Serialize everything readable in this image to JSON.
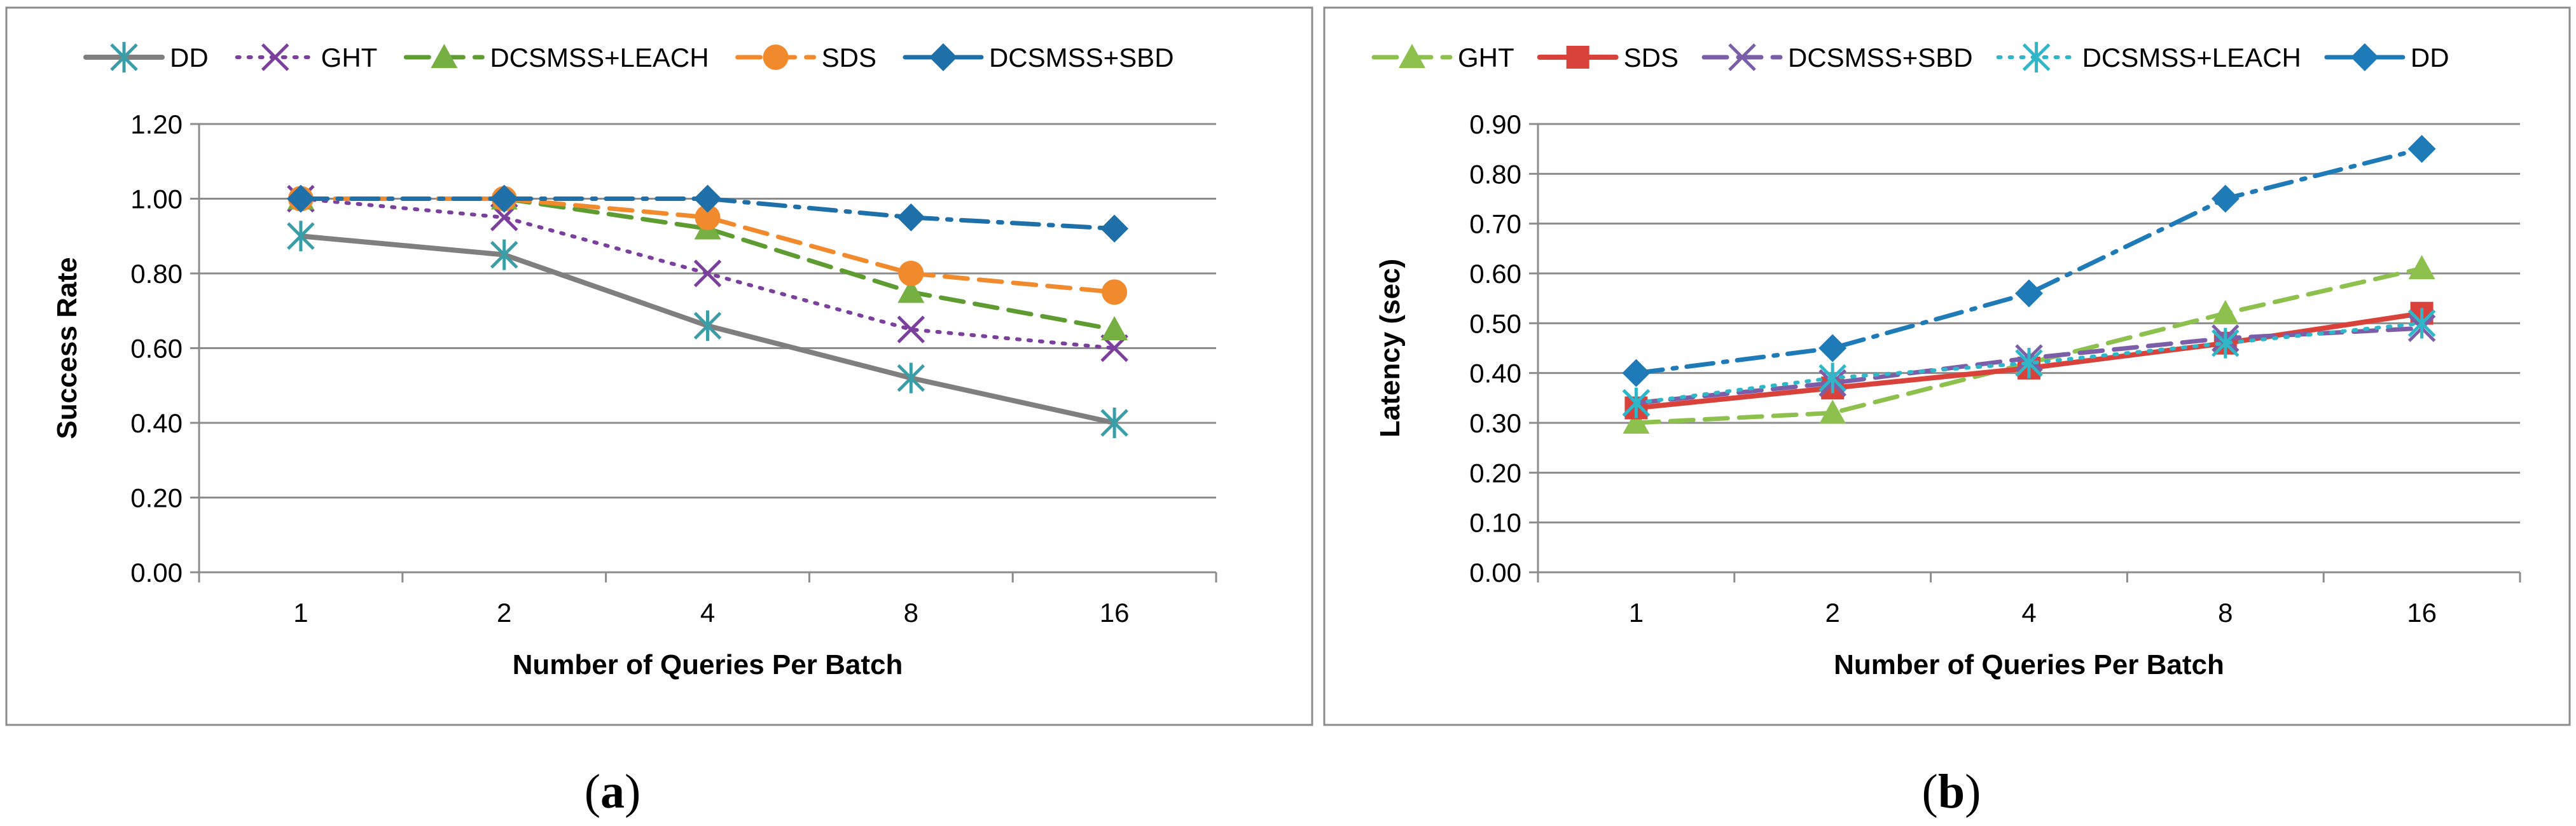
{
  "panel_a_caption": {
    "open": "(",
    "letter": "a",
    "close": ")"
  },
  "panel_b_caption": {
    "open": "(",
    "letter": "b",
    "close": ")"
  },
  "chart_data": [
    {
      "type": "line",
      "categories": [
        "1",
        "2",
        "4",
        "8",
        "16"
      ],
      "xlabel": "Number of Queries Per Batch",
      "ylabel": "Success Rate",
      "ylim": [
        0,
        1.2
      ],
      "ytick_labels": [
        "0.00",
        "0.20",
        "0.40",
        "0.60",
        "0.80",
        "1.00",
        "1.20"
      ],
      "grid": true,
      "legend_position": "top",
      "series": [
        {
          "name": "DD",
          "values": [
            0.9,
            0.85,
            0.66,
            0.52,
            0.4
          ],
          "color": "#7f7f7f",
          "dash": "solid",
          "marker": "star",
          "marker_color": "#3a9ea8",
          "width": 8
        },
        {
          "name": "GHT",
          "values": [
            1.0,
            0.95,
            0.8,
            0.65,
            0.6
          ],
          "color": "#7b3f9e",
          "dash": "dot",
          "marker": "x",
          "marker_color": "#7b3f9e",
          "width": 6
        },
        {
          "name": "DCSMSS+LEACH",
          "values": [
            1.0,
            1.0,
            0.92,
            0.75,
            0.65
          ],
          "color": "#5e9c32",
          "dash": "dash",
          "marker": "triangle",
          "marker_color": "#76b043",
          "width": 7
        },
        {
          "name": "SDS",
          "values": [
            1.0,
            1.0,
            0.95,
            0.8,
            0.75
          ],
          "color": "#f08a2c",
          "dash": "dash",
          "marker": "circle",
          "marker_color": "#f08a2c",
          "width": 7
        },
        {
          "name": "DCSMSS+SBD",
          "values": [
            1.0,
            1.0,
            1.0,
            0.95,
            0.92
          ],
          "color": "#1f6fa8",
          "dash": "dashdot",
          "marker": "diamond",
          "marker_color": "#1f6fa8",
          "width": 7
        }
      ]
    },
    {
      "type": "line",
      "categories": [
        "1",
        "2",
        "4",
        "8",
        "16"
      ],
      "xlabel": "Number of Queries Per Batch",
      "ylabel": "Latency (sec)",
      "ylim": [
        0,
        0.9
      ],
      "ytick_labels": [
        "0.00",
        "0.10",
        "0.20",
        "0.30",
        "0.40",
        "0.50",
        "0.60",
        "0.70",
        "0.80",
        "0.90"
      ],
      "grid": true,
      "legend_position": "top",
      "series": [
        {
          "name": "GHT",
          "values": [
            0.3,
            0.32,
            0.42,
            0.52,
            0.61
          ],
          "color": "#8ec04e",
          "dash": "dash",
          "marker": "triangle",
          "marker_color": "#8ec04e",
          "width": 7
        },
        {
          "name": "SDS",
          "values": [
            0.33,
            0.37,
            0.41,
            0.46,
            0.52
          ],
          "color": "#d9423b",
          "dash": "solid",
          "marker": "square",
          "marker_color": "#d9423b",
          "width": 8
        },
        {
          "name": "DCSMSS+SBD",
          "values": [
            0.34,
            0.38,
            0.43,
            0.47,
            0.49
          ],
          "color": "#7b5ea7",
          "dash": "dash",
          "marker": "x",
          "marker_color": "#7b5ea7",
          "width": 7
        },
        {
          "name": "DCSMSS+LEACH",
          "values": [
            0.34,
            0.39,
            0.42,
            0.46,
            0.5
          ],
          "color": "#2fb6c9",
          "dash": "dot",
          "marker": "star",
          "marker_color": "#2fb6c9",
          "width": 6
        },
        {
          "name": "DD",
          "values": [
            0.4,
            0.45,
            0.56,
            0.75,
            0.85
          ],
          "color": "#1f7ab8",
          "dash": "dashdot",
          "marker": "diamond",
          "marker_color": "#1f7ab8",
          "width": 7
        }
      ]
    }
  ]
}
